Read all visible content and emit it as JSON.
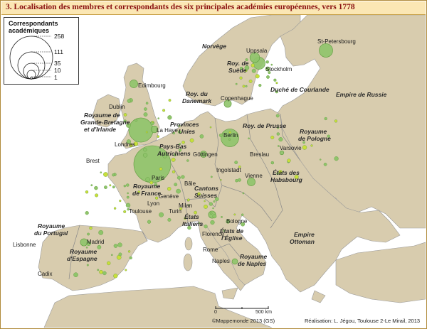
{
  "title": "3. Localisation des membres et correspondants des six principales académies européennes, vers 1778",
  "legend": {
    "title_line1": "Correspondants",
    "title_line2": "académiques",
    "values": [
      "258",
      "111",
      "35",
      "10",
      "1"
    ]
  },
  "scale": {
    "zero": "0",
    "label": "500 km"
  },
  "copyright": "©Mappemonde 2013 (GS)",
  "credits": "Réalisation: L. Jégou, Toulouse 2-Le Mirail, 2013",
  "colors": {
    "land": "#d8ccae",
    "sea": "#ffffff",
    "border": "#8a8a8a",
    "circle_fill": "#8fc46a",
    "circle_stroke": "#5f9a3e",
    "accent": "#8a1010",
    "title_bg": "#fbe7b4"
  },
  "cities": [
    {
      "name": "Edimbourg"
    },
    {
      "name": "Dublin"
    },
    {
      "name": "Londres"
    },
    {
      "name": "La Haye"
    },
    {
      "name": "Copenhague"
    },
    {
      "name": "Uppsala"
    },
    {
      "name": "Stockholm"
    },
    {
      "name": "St-Petersbourg"
    },
    {
      "name": "Berlin"
    },
    {
      "name": "Göttingen"
    },
    {
      "name": "Breslau"
    },
    {
      "name": "Varsovie"
    },
    {
      "name": "Brest"
    },
    {
      "name": "Paris"
    },
    {
      "name": "Ingolstadt"
    },
    {
      "name": "Vienne"
    },
    {
      "name": "Bâle"
    },
    {
      "name": "Lyon"
    },
    {
      "name": "Genève"
    },
    {
      "name": "Milan"
    },
    {
      "name": "Turin"
    },
    {
      "name": "Toulouse"
    },
    {
      "name": "Bologne"
    },
    {
      "name": "Florence"
    },
    {
      "name": "Rome"
    },
    {
      "name": "Naples"
    },
    {
      "name": "Madrid"
    },
    {
      "name": "Lisbonne"
    },
    {
      "name": "Cadix"
    }
  ],
  "regions": [
    {
      "l1": "Norvège",
      "l2": ""
    },
    {
      "l1": "Roy. de",
      "l2": "Suède"
    },
    {
      "l1": "Roy. du",
      "l2": "Danemark"
    },
    {
      "l1": "Duché de Courlande",
      "l2": ""
    },
    {
      "l1": "Empire de Russie",
      "l2": ""
    },
    {
      "l1": "Royaume de",
      "l2": "Grande-Bretagne"
    },
    {
      "l1": "et d'Irlande",
      "l2": ""
    },
    {
      "l1": "Provinces",
      "l2": "Unies"
    },
    {
      "l1": "Roy. de Prusse",
      "l2": ""
    },
    {
      "l1": "Royaume",
      "l2": "de Pologne"
    },
    {
      "l1": "Pays-Bas",
      "l2": "Autrichiens"
    },
    {
      "l1": "États des",
      "l2": "Habsbourg"
    },
    {
      "l1": "Royaume",
      "l2": "de France"
    },
    {
      "l1": "Cantons",
      "l2": "Suisses"
    },
    {
      "l1": "États",
      "l2": "Italiens"
    },
    {
      "l1": "États de",
      "l2": "l'Église"
    },
    {
      "l1": "Empire",
      "l2": "Ottoman"
    },
    {
      "l1": "Royaume",
      "l2": "du Portugal"
    },
    {
      "l1": "Royaume",
      "l2": "d'Espagne"
    },
    {
      "l1": "Royaume",
      "l2": "de Naples"
    }
  ],
  "correspondents": [
    {
      "city": "Paris",
      "count": 258
    },
    {
      "city": "Londres",
      "count": 111
    },
    {
      "city": "Berlin",
      "count": 60
    },
    {
      "city": "St-Petersbourg",
      "count": 35
    },
    {
      "city": "Stockholm",
      "count": 28
    },
    {
      "city": "Uppsala",
      "count": 18
    },
    {
      "city": "Edimbourg",
      "count": 12
    },
    {
      "city": "Vienne",
      "count": 12
    },
    {
      "city": "Madrid",
      "count": 10
    },
    {
      "city": "Copenhague",
      "count": 10
    },
    {
      "city": "Bologne",
      "count": 10
    },
    {
      "city": "Naples",
      "count": 6
    },
    {
      "city": "Göttingen",
      "count": 8
    },
    {
      "city": "La Haye",
      "count": 9
    },
    {
      "city": "Varsovie",
      "count": 3
    }
  ]
}
